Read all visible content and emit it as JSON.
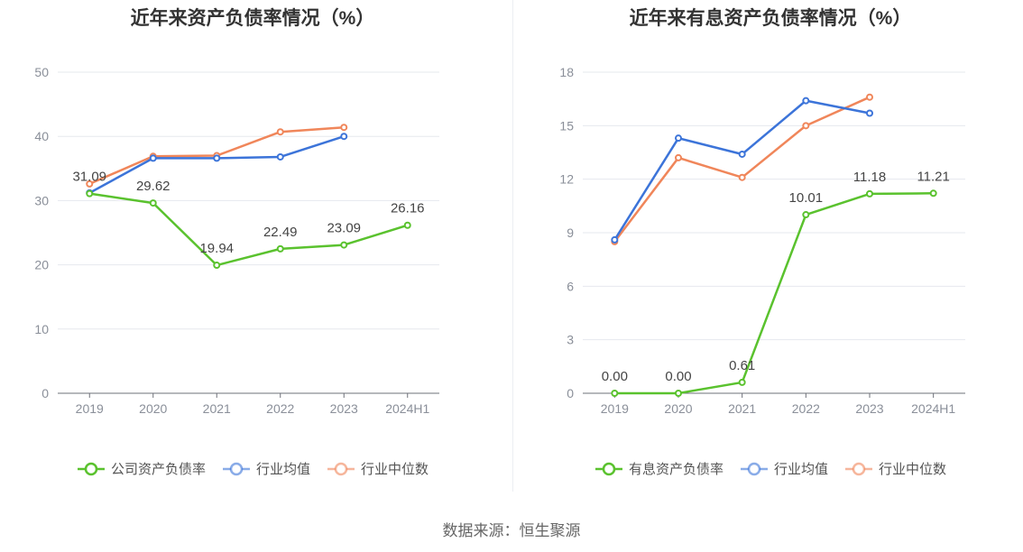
{
  "chart_data": [
    {
      "type": "line",
      "title": "近年来资产负债率情况（%）",
      "categories": [
        "2019",
        "2020",
        "2021",
        "2022",
        "2023",
        "2024H1"
      ],
      "ylim": [
        0,
        50
      ],
      "yticks": [
        0,
        10,
        20,
        30,
        40,
        50
      ],
      "grid": true,
      "legend_position": "bottom",
      "series": [
        {
          "name": "公司资产负债率",
          "color": "#5ac22e",
          "values": [
            31.09,
            29.62,
            19.94,
            22.49,
            23.09,
            26.16
          ],
          "labels": [
            "31.09",
            "29.62",
            "19.94",
            "22.49",
            "23.09",
            "26.16"
          ]
        },
        {
          "name": "行业均值",
          "color": "#3c74d9",
          "values": [
            31.2,
            36.6,
            36.6,
            36.8,
            40.0,
            null
          ]
        },
        {
          "name": "行业中位数",
          "color": "#f0865a",
          "values": [
            32.6,
            36.9,
            37.0,
            40.7,
            41.4,
            null
          ]
        }
      ]
    },
    {
      "type": "line",
      "title": "近年来有息资产负债率情况（%）",
      "categories": [
        "2019",
        "2020",
        "2021",
        "2022",
        "2023",
        "2024H1"
      ],
      "ylim": [
        0,
        18
      ],
      "yticks": [
        0,
        3,
        6,
        9,
        12,
        15,
        18
      ],
      "grid": true,
      "legend_position": "bottom",
      "series": [
        {
          "name": "有息资产负债率",
          "color": "#5ac22e",
          "values": [
            0.0,
            0.0,
            0.61,
            10.01,
            11.18,
            11.21
          ],
          "labels": [
            "0.00",
            "0.00",
            "0.61",
            "10.01",
            "11.18",
            "11.21"
          ]
        },
        {
          "name": "行业均值",
          "color": "#3c74d9",
          "values": [
            8.6,
            14.3,
            13.4,
            16.4,
            15.7,
            null
          ]
        },
        {
          "name": "行业中位数",
          "color": "#f0865a",
          "values": [
            8.5,
            13.2,
            12.1,
            15.0,
            16.6,
            null
          ]
        }
      ]
    }
  ],
  "source": "数据来源：恒生聚源"
}
